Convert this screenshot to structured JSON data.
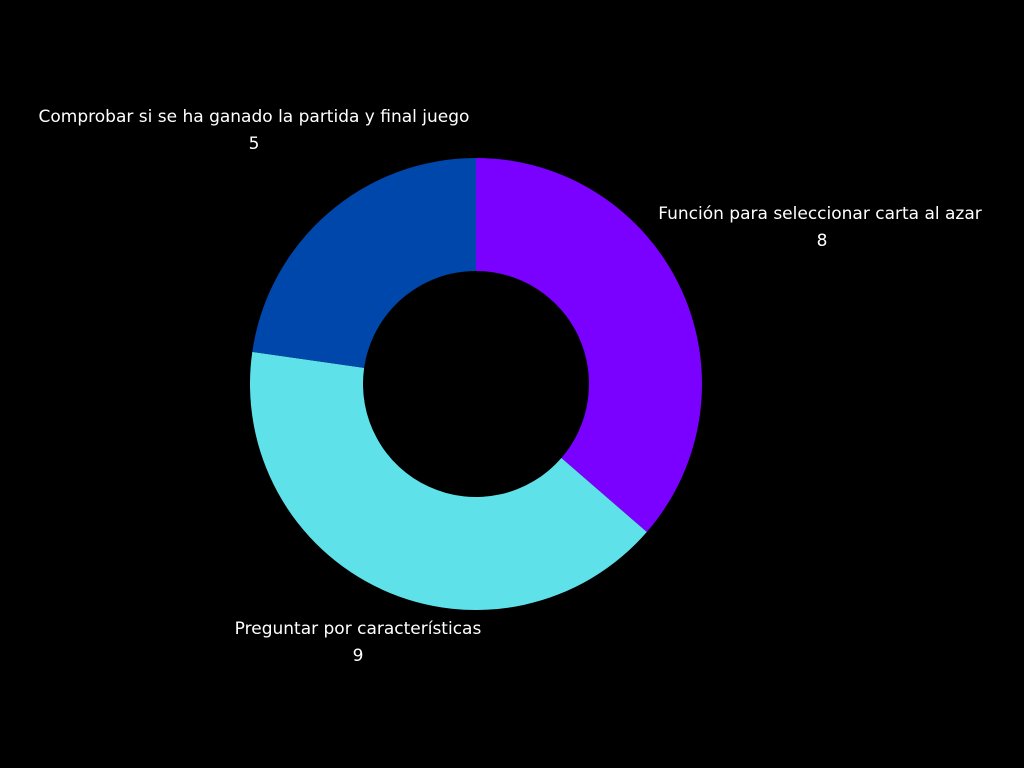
{
  "chart_data": {
    "type": "pie",
    "hole": true,
    "slices": [
      {
        "label": "Función para seleccionar carta al azar",
        "value": 8,
        "color": "#7a00ff"
      },
      {
        "label": "Preguntar por características",
        "value": 9,
        "color": "#5ee1e8"
      },
      {
        "label": "Comprobar si se ha ganado la partida y final juego",
        "value": 5,
        "color": "#0047ab"
      }
    ]
  },
  "theme": {
    "background": "#000000",
    "text_color": "#ffffff"
  }
}
